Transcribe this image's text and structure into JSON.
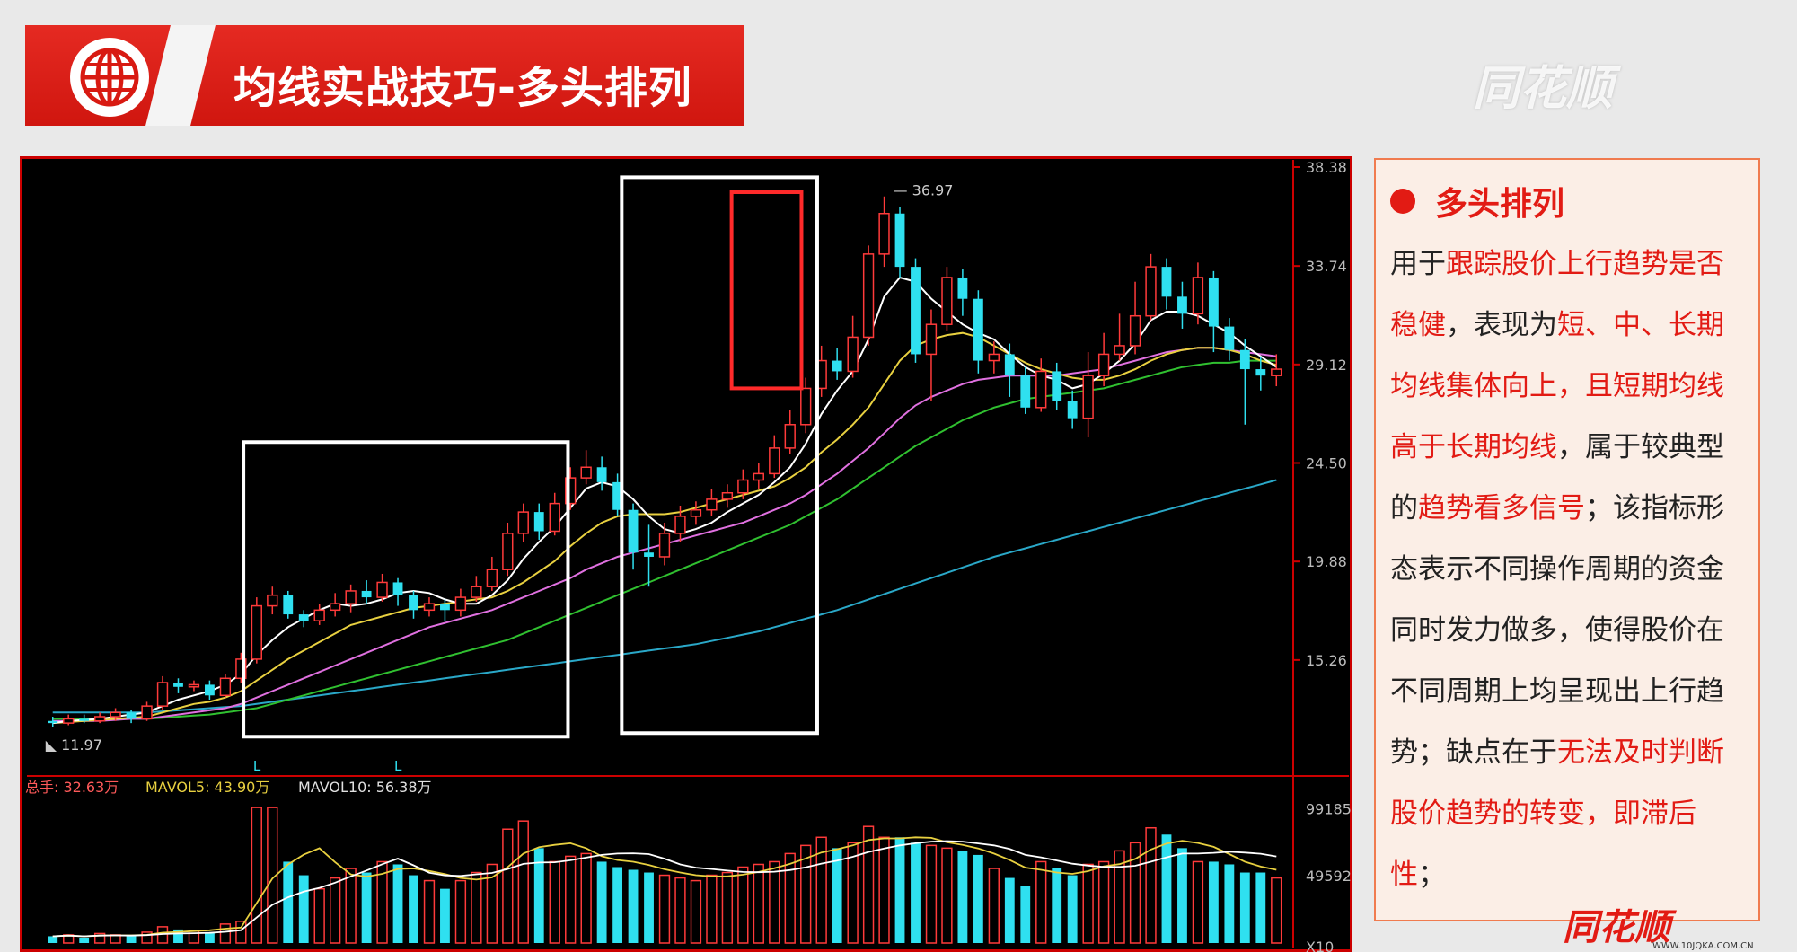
{
  "header": {
    "title": "均线实战技巧-多头排列",
    "brand": "同花顺"
  },
  "panel": {
    "heading": "多头排列",
    "segments": [
      {
        "t": "用于",
        "h": false
      },
      {
        "t": "跟踪股价上行趋势是否稳健",
        "h": true
      },
      {
        "t": "，表现为",
        "h": false
      },
      {
        "t": "短、中、长期均线集体向上，且短期均线高于长期均线",
        "h": true
      },
      {
        "t": "，属于较典型的",
        "h": false
      },
      {
        "t": "趋势看多信号",
        "h": true
      },
      {
        "t": "；该指标形态表示不同操作周期的资金同时发力做多，使得股价在不同周期上均呈现出上行趋势；缺点在于",
        "h": false
      },
      {
        "t": "无法及时判断股价趋势的转变，即滞后性",
        "h": true
      },
      {
        "t": "；",
        "h": false
      }
    ]
  },
  "footer": {
    "logo": "同花顺",
    "url": "WWW.10JQKA.COM.CN"
  },
  "colors": {
    "up": "#ff3a3a",
    "down": "#2fe0f0",
    "ma5": "#ffffff",
    "ma10": "#e8d040",
    "ma20": "#e070e0",
    "ma30": "#30c030",
    "ma60": "#2aa8c8",
    "frame": "#cc0000"
  },
  "chart_data": {
    "type": "candlestick",
    "price_ticks": [
      "38.38",
      "33.74",
      "29.12",
      "24.50",
      "19.88",
      "15.26"
    ],
    "price_tick_values": [
      38.38,
      33.74,
      29.12,
      24.5,
      19.88,
      15.26
    ],
    "ylim": [
      11.0,
      38.38
    ],
    "low_label": "11.97",
    "high_label": "36.97",
    "low_value": 11.97,
    "high_value": 36.97,
    "markers": [
      "L",
      "L"
    ],
    "marker_at": [
      13,
      22
    ],
    "candles": [
      [
        12.4,
        12.3,
        12.6,
        12.1
      ],
      [
        12.3,
        12.5,
        12.7,
        12.2
      ],
      [
        12.5,
        12.4,
        12.7,
        12.3
      ],
      [
        12.4,
        12.6,
        12.8,
        12.3
      ],
      [
        12.6,
        12.8,
        13.0,
        12.4
      ],
      [
        12.8,
        12.5,
        12.9,
        12.3
      ],
      [
        12.5,
        13.1,
        13.3,
        12.4
      ],
      [
        13.1,
        14.2,
        14.5,
        12.9
      ],
      [
        14.2,
        14.0,
        14.4,
        13.7
      ],
      [
        14.0,
        14.1,
        14.3,
        13.8
      ],
      [
        14.1,
        13.6,
        14.3,
        13.4
      ],
      [
        13.6,
        14.4,
        14.6,
        13.5
      ],
      [
        14.4,
        15.3,
        15.6,
        14.2
      ],
      [
        15.3,
        17.8,
        18.2,
        15.1
      ],
      [
        17.8,
        18.3,
        18.7,
        17.4
      ],
      [
        18.3,
        17.4,
        18.5,
        17.2
      ],
      [
        17.4,
        17.1,
        17.6,
        16.8
      ],
      [
        17.1,
        17.6,
        17.9,
        16.9
      ],
      [
        17.6,
        17.9,
        18.4,
        17.3
      ],
      [
        17.9,
        18.5,
        18.8,
        17.5
      ],
      [
        18.5,
        18.2,
        19.0,
        17.9
      ],
      [
        18.2,
        18.9,
        19.3,
        18.0
      ],
      [
        18.9,
        18.3,
        19.1,
        17.8
      ],
      [
        18.3,
        17.6,
        18.5,
        17.2
      ],
      [
        17.6,
        17.9,
        18.2,
        17.3
      ],
      [
        17.9,
        17.6,
        18.1,
        17.1
      ],
      [
        17.6,
        18.2,
        18.6,
        17.3
      ],
      [
        18.2,
        18.7,
        19.2,
        18.0
      ],
      [
        18.7,
        19.5,
        20.1,
        18.5
      ],
      [
        19.5,
        21.2,
        21.7,
        19.2
      ],
      [
        21.2,
        22.2,
        22.6,
        20.8
      ],
      [
        22.2,
        21.3,
        22.6,
        20.9
      ],
      [
        21.3,
        22.6,
        23.1,
        21.1
      ],
      [
        22.6,
        23.8,
        24.3,
        22.3
      ],
      [
        23.8,
        24.3,
        25.1,
        23.5
      ],
      [
        24.3,
        23.6,
        24.8,
        23.2
      ],
      [
        23.6,
        22.3,
        24.0,
        22.0
      ],
      [
        22.3,
        20.3,
        22.6,
        19.5
      ],
      [
        20.3,
        20.1,
        21.6,
        18.7
      ],
      [
        20.1,
        21.2,
        21.7,
        19.7
      ],
      [
        21.2,
        22.0,
        22.5,
        20.8
      ],
      [
        22.0,
        22.3,
        22.7,
        21.6
      ],
      [
        22.3,
        22.8,
        23.3,
        22.0
      ],
      [
        22.8,
        23.1,
        23.5,
        22.4
      ],
      [
        23.1,
        23.7,
        24.2,
        22.8
      ],
      [
        23.7,
        24.0,
        24.5,
        23.3
      ],
      [
        24.0,
        25.2,
        25.8,
        23.8
      ],
      [
        25.2,
        26.3,
        27.0,
        24.9
      ],
      [
        26.3,
        28.0,
        28.5,
        25.9
      ],
      [
        28.0,
        29.3,
        30.0,
        27.6
      ],
      [
        29.3,
        28.8,
        29.9,
        28.4
      ],
      [
        28.8,
        30.4,
        31.4,
        28.5
      ],
      [
        30.4,
        34.3,
        34.7,
        30.0
      ],
      [
        34.3,
        36.2,
        37.0,
        33.7
      ],
      [
        36.2,
        33.7,
        36.5,
        33.2
      ],
      [
        33.7,
        29.6,
        34.1,
        29.2
      ],
      [
        29.6,
        31.0,
        31.7,
        27.4
      ],
      [
        31.0,
        33.2,
        33.7,
        30.7
      ],
      [
        33.2,
        32.2,
        33.6,
        31.4
      ],
      [
        32.2,
        29.3,
        32.6,
        28.7
      ],
      [
        29.3,
        29.6,
        30.2,
        28.7
      ],
      [
        29.6,
        28.6,
        30.1,
        27.6
      ],
      [
        28.6,
        27.1,
        29.0,
        26.8
      ],
      [
        27.1,
        28.8,
        29.4,
        26.9
      ],
      [
        28.8,
        27.4,
        29.2,
        27.0
      ],
      [
        27.4,
        26.6,
        27.9,
        26.1
      ],
      [
        26.6,
        28.6,
        29.7,
        25.7
      ],
      [
        28.6,
        29.6,
        30.6,
        28.1
      ],
      [
        29.6,
        30.0,
        31.5,
        29.3
      ],
      [
        30.0,
        31.4,
        33.0,
        29.6
      ],
      [
        31.4,
        33.7,
        34.3,
        31.2
      ],
      [
        33.7,
        32.3,
        34.1,
        31.7
      ],
      [
        32.3,
        31.5,
        33.0,
        30.8
      ],
      [
        31.5,
        33.2,
        33.9,
        31.0
      ],
      [
        33.2,
        30.9,
        33.5,
        29.7
      ],
      [
        30.9,
        29.8,
        31.3,
        29.3
      ],
      [
        29.8,
        28.9,
        30.3,
        26.3
      ],
      [
        28.9,
        28.6,
        29.5,
        27.9
      ],
      [
        28.6,
        28.9,
        29.6,
        28.1
      ]
    ],
    "ma5": [
      12.3,
      12.4,
      12.45,
      12.5,
      12.6,
      12.7,
      12.8,
      13.1,
      13.4,
      13.6,
      13.8,
      14.1,
      14.6,
      15.5,
      16.2,
      16.8,
      17.2,
      17.6,
      17.9,
      17.8,
      17.9,
      18.1,
      18.4,
      18.5,
      18.4,
      18.1,
      17.9,
      17.9,
      18.3,
      19.0,
      20.0,
      20.8,
      21.5,
      22.4,
      23.3,
      23.6,
      23.4,
      22.8,
      22.0,
      21.4,
      21.2,
      21.4,
      21.7,
      22.2,
      22.6,
      23.0,
      23.6,
      24.3,
      25.4,
      26.8,
      27.9,
      28.8,
      30.3,
      32.3,
      33.2,
      33.0,
      32.2,
      31.6,
      31.0,
      30.6,
      30.3,
      29.6,
      29.0,
      28.6,
      28.4,
      28.0,
      28.2,
      28.7,
      29.3,
      30.1,
      31.2,
      31.6,
      31.6,
      31.4,
      31.0,
      30.6,
      30.0,
      29.5,
      29.0
    ],
    "ma10": [
      12.3,
      12.35,
      12.4,
      12.45,
      12.5,
      12.55,
      12.6,
      12.8,
      13.0,
      13.2,
      13.3,
      13.5,
      13.8,
      14.3,
      14.8,
      15.3,
      15.7,
      16.1,
      16.5,
      16.9,
      17.1,
      17.3,
      17.5,
      17.7,
      17.8,
      17.9,
      18.0,
      18.1,
      18.2,
      18.5,
      18.9,
      19.4,
      19.9,
      20.6,
      21.2,
      21.7,
      22.0,
      22.1,
      22.1,
      22.1,
      22.2,
      22.4,
      22.6,
      22.8,
      23.0,
      23.2,
      23.4,
      23.8,
      24.3,
      25.0,
      25.6,
      26.3,
      27.1,
      28.2,
      29.3,
      30.0,
      30.3,
      30.5,
      30.6,
      30.4,
      30.0,
      29.6,
      29.2,
      28.9,
      28.7,
      28.5,
      28.4,
      28.4,
      28.6,
      28.9,
      29.3,
      29.6,
      29.8,
      29.9,
      29.9,
      29.8,
      29.6,
      29.3,
      29.1
    ],
    "ma20": [
      12.4,
      12.4,
      12.4,
      12.4,
      12.45,
      12.5,
      12.5,
      12.6,
      12.7,
      12.8,
      12.9,
      13.0,
      13.2,
      13.5,
      13.8,
      14.1,
      14.4,
      14.7,
      15.0,
      15.3,
      15.6,
      15.9,
      16.2,
      16.5,
      16.8,
      17.0,
      17.2,
      17.4,
      17.6,
      17.9,
      18.2,
      18.5,
      18.8,
      19.1,
      19.5,
      19.8,
      20.1,
      20.3,
      20.5,
      20.7,
      20.9,
      21.1,
      21.3,
      21.5,
      21.7,
      22.0,
      22.3,
      22.6,
      23.0,
      23.5,
      24.0,
      24.6,
      25.2,
      25.9,
      26.6,
      27.2,
      27.6,
      27.9,
      28.2,
      28.4,
      28.5,
      28.6,
      28.6,
      28.6,
      28.6,
      28.7,
      28.8,
      28.9,
      29.1,
      29.3,
      29.5,
      29.7,
      29.8,
      29.9,
      29.9,
      29.8,
      29.7,
      29.6,
      29.5
    ],
    "ma30": [
      12.5,
      12.5,
      12.5,
      12.5,
      12.5,
      12.5,
      12.5,
      12.55,
      12.6,
      12.65,
      12.7,
      12.8,
      12.9,
      13.0,
      13.2,
      13.4,
      13.6,
      13.8,
      14.0,
      14.2,
      14.4,
      14.6,
      14.8,
      15.0,
      15.2,
      15.4,
      15.6,
      15.8,
      16.0,
      16.2,
      16.5,
      16.8,
      17.1,
      17.4,
      17.7,
      18.0,
      18.3,
      18.6,
      18.9,
      19.2,
      19.5,
      19.8,
      20.1,
      20.4,
      20.7,
      21.0,
      21.3,
      21.6,
      22.0,
      22.4,
      22.8,
      23.3,
      23.8,
      24.3,
      24.8,
      25.3,
      25.7,
      26.1,
      26.5,
      26.8,
      27.1,
      27.3,
      27.5,
      27.6,
      27.7,
      27.8,
      27.9,
      28.0,
      28.2,
      28.4,
      28.6,
      28.8,
      29.0,
      29.1,
      29.2,
      29.2,
      29.3,
      29.3,
      29.3
    ],
    "ma60": [
      12.8,
      12.8,
      12.8,
      12.8,
      12.8,
      12.8,
      12.8,
      12.85,
      12.9,
      12.95,
      13.0,
      13.05,
      13.1,
      13.2,
      13.3,
      13.4,
      13.5,
      13.6,
      13.7,
      13.8,
      13.9,
      14.0,
      14.1,
      14.2,
      14.3,
      14.4,
      14.5,
      14.6,
      14.7,
      14.8,
      14.9,
      15.0,
      15.1,
      15.2,
      15.3,
      15.4,
      15.5,
      15.6,
      15.7,
      15.8,
      15.9,
      16.0,
      16.15,
      16.3,
      16.45,
      16.6,
      16.8,
      17.0,
      17.2,
      17.4,
      17.6,
      17.85,
      18.1,
      18.35,
      18.6,
      18.85,
      19.1,
      19.35,
      19.6,
      19.85,
      20.1,
      20.3,
      20.5,
      20.7,
      20.9,
      21.1,
      21.3,
      21.5,
      21.7,
      21.9,
      22.1,
      22.3,
      22.5,
      22.7,
      22.9,
      23.1,
      23.3,
      23.5,
      23.7
    ],
    "volume_labels": {
      "total": "总手: 32.63万",
      "mavol5": "MAVOL5: 43.90万",
      "mavol10": "MAVOL10: 56.38万"
    },
    "volume_ticks": [
      "99185",
      "49592",
      "X10"
    ],
    "volume_tick_values": [
      99185,
      49592
    ],
    "volume": [
      5,
      6,
      4,
      7,
      6,
      5,
      8,
      12,
      10,
      9,
      8,
      14,
      16,
      100,
      100,
      60,
      50,
      40,
      48,
      55,
      52,
      60,
      58,
      50,
      46,
      40,
      46,
      52,
      58,
      84,
      90,
      70,
      60,
      64,
      66,
      60,
      56,
      54,
      52,
      50,
      48,
      46,
      50,
      52,
      56,
      58,
      60,
      66,
      72,
      78,
      70,
      74,
      86,
      78,
      78,
      74,
      72,
      70,
      68,
      65,
      55,
      48,
      42,
      60,
      55,
      50,
      58,
      60,
      68,
      74,
      85,
      80,
      70,
      60,
      60,
      58,
      52,
      52,
      48
    ]
  }
}
